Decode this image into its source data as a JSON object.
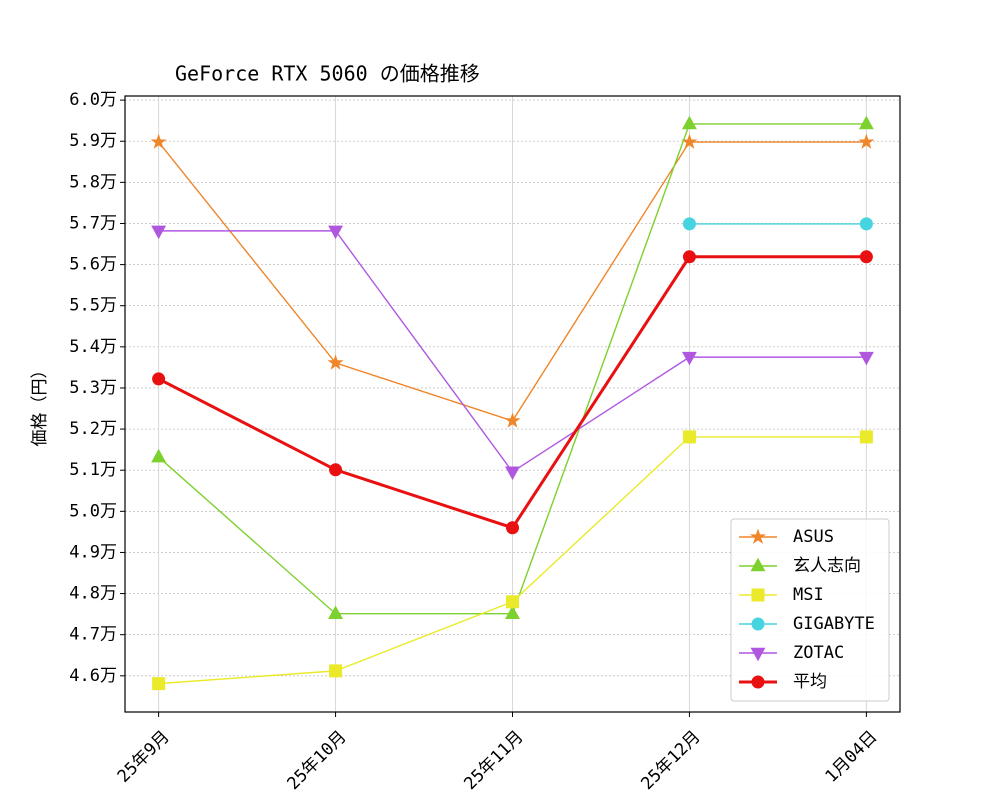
{
  "chart_data": {
    "type": "line",
    "title": "GeForce RTX 5060 の価格推移",
    "y_label": "価格（円）",
    "categories": [
      "25年9月",
      "25年10月",
      "25年11月",
      "25年12月",
      "1月04日"
    ],
    "series": [
      {
        "name": "ASUS",
        "color": "#f0862a",
        "marker": "star",
        "values": [
          58980,
          53610,
          52200,
          58980,
          58980
        ]
      },
      {
        "name": "玄人志向",
        "color": "#7cd12e",
        "marker": "triangle-up",
        "values": [
          51320,
          47510,
          47510,
          59420,
          59420
        ]
      },
      {
        "name": "MSI",
        "color": "#eaea2a",
        "marker": "square",
        "values": [
          45810,
          46120,
          47800,
          51810,
          51810
        ]
      },
      {
        "name": "GIGABYTE",
        "color": "#46d4e0",
        "marker": "circle",
        "values": [
          null,
          null,
          null,
          56990,
          56990
        ]
      },
      {
        "name": "ZOTAC",
        "color": "#b057e0",
        "marker": "triangle-down",
        "values": [
          56820,
          56820,
          50960,
          53750,
          53750
        ]
      },
      {
        "name": "平均",
        "color": "#e81010",
        "marker": "circle",
        "values": [
          53220,
          51010,
          49600,
          56190,
          56190
        ]
      }
    ],
    "ylim": [
      45120,
      60100
    ],
    "yticks": [
      {
        "value": 46000,
        "label": "4.6万"
      },
      {
        "value": 47000,
        "label": "4.7万"
      },
      {
        "value": 48000,
        "label": "4.8万"
      },
      {
        "value": 49000,
        "label": "4.9万"
      },
      {
        "value": 50000,
        "label": "5.0万"
      },
      {
        "value": 51000,
        "label": "5.1万"
      },
      {
        "value": 52000,
        "label": "5.2万"
      },
      {
        "value": 53000,
        "label": "5.3万"
      },
      {
        "value": 54000,
        "label": "5.4万"
      },
      {
        "value": 55000,
        "label": "5.5万"
      },
      {
        "value": 56000,
        "label": "5.6万"
      },
      {
        "value": 57000,
        "label": "5.7万"
      },
      {
        "value": 58000,
        "label": "5.8万"
      },
      {
        "value": 59000,
        "label": "5.9万"
      },
      {
        "value": 60000,
        "label": "6.0万"
      }
    ],
    "grid": true,
    "legend": "lower right"
  }
}
